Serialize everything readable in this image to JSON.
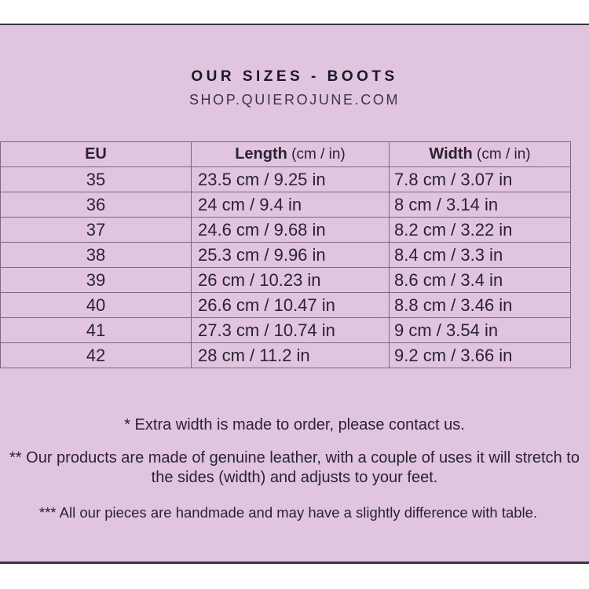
{
  "header": {
    "title": "OUR SIZES - BOOTS",
    "subtitle": "SHOP.QUIEROJUNE.COM"
  },
  "table": {
    "columns": [
      {
        "label": "EU",
        "unit": ""
      },
      {
        "label": "Length",
        "unit": " (cm / in)"
      },
      {
        "label": "Width",
        "unit": " (cm / in)"
      }
    ],
    "rows": [
      [
        "35",
        "23.5 cm / 9.25 in",
        "7.8 cm / 3.07 in"
      ],
      [
        "36",
        "24 cm / 9.4 in",
        "8 cm / 3.14 in"
      ],
      [
        "37",
        "24.6 cm / 9.68 in",
        "8.2 cm / 3.22 in"
      ],
      [
        "38",
        "25.3 cm / 9.96 in",
        "8.4 cm / 3.3 in"
      ],
      [
        "39",
        "26 cm / 10.23 in",
        "8.6 cm / 3.4 in"
      ],
      [
        "40",
        "26.6 cm / 10.47 in",
        "8.8 cm / 3.46 in"
      ],
      [
        "41",
        "27.3 cm / 10.74 in",
        "9 cm / 3.54 in"
      ],
      [
        "42",
        "28 cm / 11.2 in",
        "9.2 cm / 3.66 in"
      ]
    ]
  },
  "notes": [
    "* Extra width is made to order, please contact us.",
    "** Our products are made of genuine leather, with a couple of uses it will stretch to the sides (width) and adjusts to your feet.",
    "*** All our pieces are handmade and may have a slightly difference with table."
  ],
  "colors": {
    "background": "#e1c5e0",
    "text": "#2a2330",
    "border": "#7a6a80"
  }
}
